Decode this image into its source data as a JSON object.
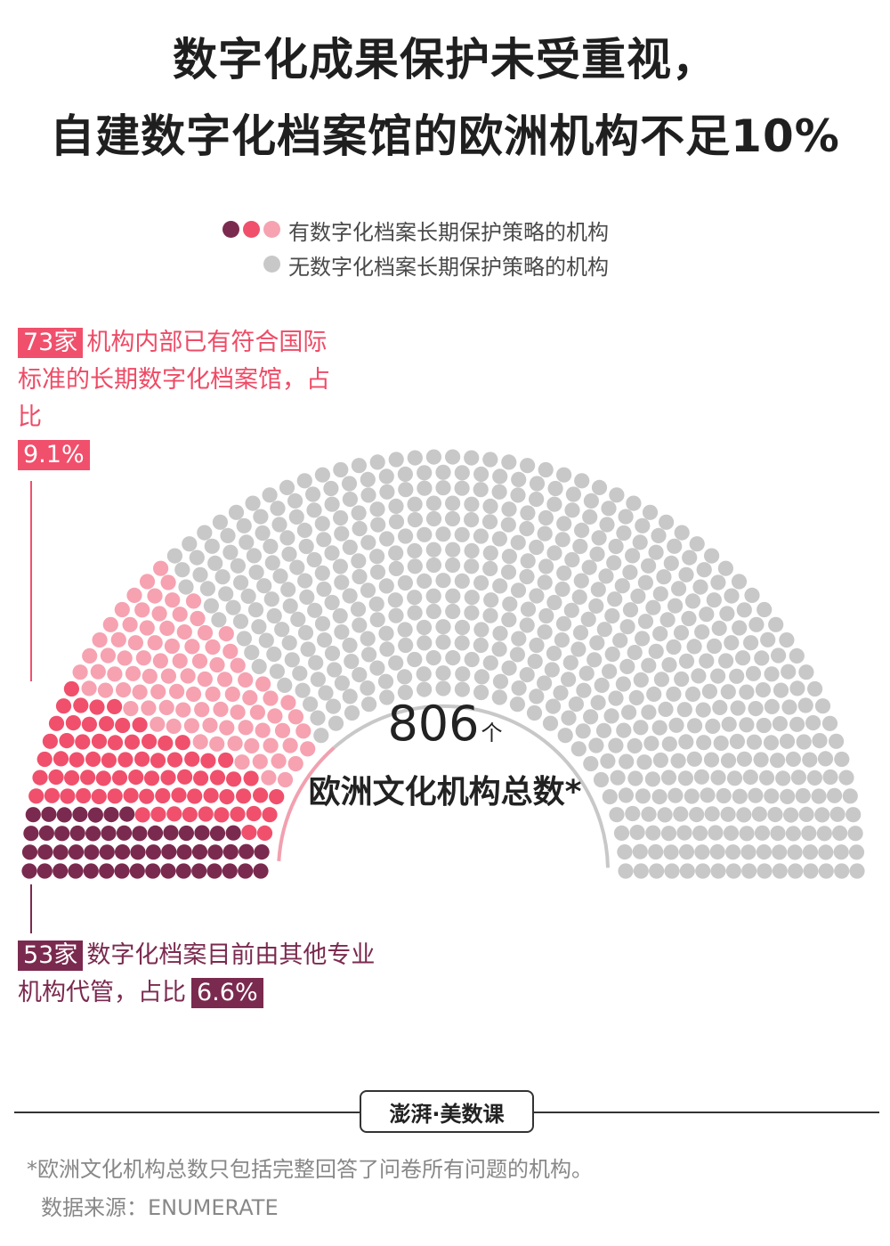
{
  "title": {
    "line1": "数字化成果保护未受重视，",
    "line2": "自建数字化档案馆的欧洲机构不足10%"
  },
  "legend": [
    {
      "label": "有数字化档案长期保护策略的机构",
      "colors": [
        "#7b2a4f",
        "#f0506c",
        "#f6a2b1"
      ]
    },
    {
      "label": "无数字化档案长期保护策略的机构",
      "colors": [
        "#c8c8c8"
      ]
    }
  ],
  "annotations": {
    "own_archive": {
      "tag": "73家",
      "text": "机构内部已有符合国际标准的长期数字化档案馆，占比",
      "pct": "9.1%"
    },
    "managed_by_others": {
      "tag": "53家",
      "text": "数字化档案目前由其他专业机构代管，占比",
      "pct": "6.6%"
    }
  },
  "center": {
    "count": "806",
    "unit": "个",
    "label": "欧洲文化机构总数*"
  },
  "chart_data": {
    "type": "parliament",
    "total": 806,
    "series": [
      {
        "name": "数字化档案目前由其他专业机构代管",
        "value": 53,
        "color": "#7b2a4f"
      },
      {
        "name": "机构内部已有符合国际标准的长期数字化档案馆",
        "value": 73,
        "color": "#f0506c"
      },
      {
        "name": "有数字化档案长期保护策略的机构",
        "value": 91,
        "color": "#f6a2b1"
      },
      {
        "name": "无数字化档案长期保护策略的机构",
        "value": 589,
        "color": "#c8c8c8"
      }
    ]
  },
  "footer": {
    "brand": "澎湃·美数课",
    "note": "*欧洲文化机构总数只包括完整回答了问卷所有问题的机构。",
    "source": "数据来源：ENUMERATE"
  }
}
